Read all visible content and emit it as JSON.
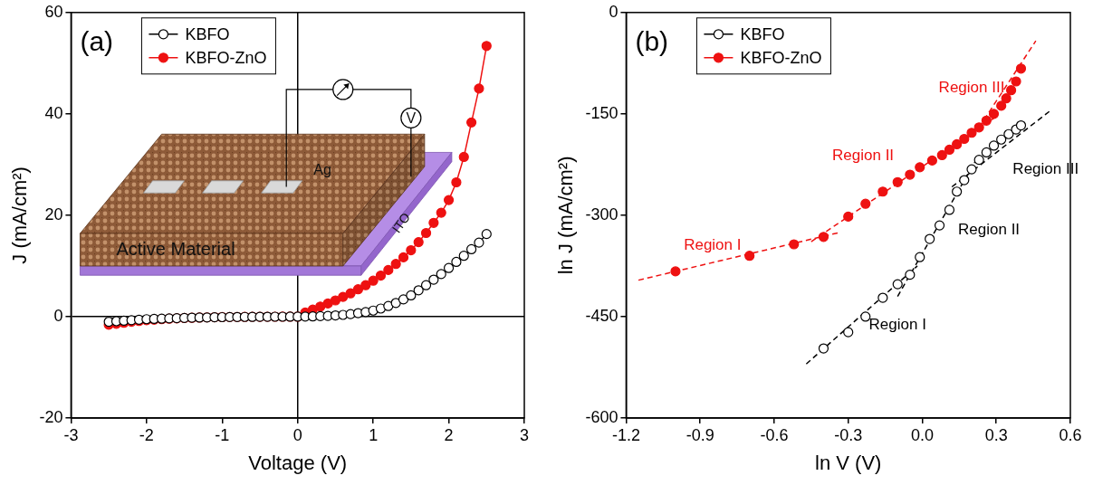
{
  "chart_data": [
    {
      "type": "line",
      "panel": "(a)",
      "x_label": "Voltage (V)",
      "y_label": "J (mA/cm²)",
      "xlim": [
        -3,
        3
      ],
      "xticks": [
        -3,
        -2,
        -1,
        0,
        1,
        2,
        3
      ],
      "ylim": [
        -20,
        60
      ],
      "yticks": [
        -20,
        0,
        20,
        40,
        60
      ],
      "grid": false,
      "legend": "upper left",
      "x": [
        -2.5,
        -2.4,
        -2.3,
        -2.2,
        -2.1,
        -2.0,
        -1.9,
        -1.8,
        -1.7,
        -1.6,
        -1.5,
        -1.4,
        -1.3,
        -1.2,
        -1.1,
        -1.0,
        -0.9,
        -0.8,
        -0.7,
        -0.6,
        -0.5,
        -0.4,
        -0.3,
        -0.2,
        -0.1,
        0,
        0.1,
        0.2,
        0.3,
        0.4,
        0.5,
        0.6,
        0.7,
        0.8,
        0.9,
        1.0,
        1.1,
        1.2,
        1.3,
        1.4,
        1.5,
        1.6,
        1.7,
        1.8,
        1.9,
        2.0,
        2.1,
        2.2,
        2.3,
        2.4,
        2.5
      ],
      "series": [
        {
          "name": "KBFO",
          "color": "#000000",
          "marker": "circle_open",
          "line_style": "solid",
          "values": [
            -1.0,
            -0.9,
            -0.8,
            -0.7,
            -0.6,
            -0.5,
            -0.45,
            -0.4,
            -0.35,
            -0.3,
            -0.25,
            -0.2,
            -0.18,
            -0.15,
            -0.12,
            -0.1,
            -0.08,
            -0.06,
            -0.05,
            -0.04,
            -0.03,
            -0.02,
            -0.01,
            -0.01,
            0,
            0,
            0.02,
            0.05,
            0.1,
            0.15,
            0.25,
            0.35,
            0.5,
            0.7,
            0.9,
            1.2,
            1.6,
            2.1,
            2.7,
            3.4,
            4.2,
            5.2,
            6.2,
            7.3,
            8.4,
            9.6,
            10.8,
            12.0,
            13.3,
            14.6,
            16.3
          ]
        },
        {
          "name": "KBFO-ZnO",
          "color": "#ee1111",
          "marker": "circle",
          "line_style": "solid",
          "values": [
            -1.6,
            -1.4,
            -1.2,
            -1.0,
            -0.85,
            -0.7,
            -0.6,
            -0.5,
            -0.4,
            -0.33,
            -0.27,
            -0.22,
            -0.18,
            -0.14,
            -0.11,
            -0.09,
            -0.07,
            -0.05,
            -0.04,
            -0.03,
            -0.02,
            -0.01,
            -0.01,
            0,
            0,
            0,
            0.8,
            1.4,
            2.0,
            2.6,
            3.2,
            3.9,
            4.6,
            5.4,
            6.2,
            7.1,
            8.1,
            9.2,
            10.4,
            11.7,
            13.1,
            14.7,
            16.5,
            18.5,
            20.5,
            23,
            26.5,
            31.5,
            38.3,
            45,
            53.4
          ]
        }
      ],
      "annotations": [
        {
          "text": "Ag"
        },
        {
          "text": "Active Material"
        },
        {
          "text": "ITO"
        },
        {
          "text": "V"
        }
      ]
    },
    {
      "type": "scatter",
      "panel": "(b)",
      "x_label": "ln V (V)",
      "y_label": "ln J (mA/cm²)",
      "xlim": [
        -1.2,
        0.6
      ],
      "xticks": [
        -1.2,
        -0.9,
        -0.6,
        -0.3,
        {
          "value": 0,
          "label": "0.0"
        },
        0.3,
        0.6
      ],
      "ylim": [
        -600,
        0
      ],
      "yticks": [
        -600,
        -450,
        -300,
        -150,
        0
      ],
      "grid": false,
      "legend": "upper left",
      "series": [
        {
          "name": "KBFO",
          "color": "#000000",
          "marker": "circle_open",
          "line_style": "none",
          "values": [
            [
              -0.4,
              -497
            ],
            [
              -0.3,
              -473
            ],
            [
              -0.23,
              -450
            ],
            [
              -0.16,
              -422
            ],
            [
              -0.1,
              -402
            ],
            [
              -0.05,
              -388
            ],
            [
              -0.01,
              -362
            ],
            [
              0.03,
              -335
            ],
            [
              0.07,
              -315
            ],
            [
              0.11,
              -292
            ],
            [
              0.14,
              -265
            ],
            [
              0.17,
              -248
            ],
            [
              0.2,
              -232
            ],
            [
              0.23,
              -218
            ],
            [
              0.26,
              -207
            ],
            [
              0.29,
              -197
            ],
            [
              0.32,
              -188
            ],
            [
              0.35,
              -180
            ],
            [
              0.38,
              -173
            ],
            [
              0.4,
              -167
            ]
          ]
        },
        {
          "name": "KBFO-ZnO",
          "color": "#ee1111",
          "marker": "circle",
          "line_style": "none",
          "values": [
            [
              -1.0,
              -383
            ],
            [
              -0.7,
              -360
            ],
            [
              -0.52,
              -343
            ],
            [
              -0.4,
              -332
            ],
            [
              -0.3,
              -302
            ],
            [
              -0.23,
              -283
            ],
            [
              -0.16,
              -265
            ],
            [
              -0.1,
              -251
            ],
            [
              -0.05,
              -240
            ],
            [
              -0.01,
              -229
            ],
            [
              0.04,
              -219
            ],
            [
              0.08,
              -211
            ],
            [
              0.11,
              -203
            ],
            [
              0.14,
              -195
            ],
            [
              0.17,
              -187
            ],
            [
              0.2,
              -178
            ],
            [
              0.23,
              -170
            ],
            [
              0.26,
              -160
            ],
            [
              0.29,
              -150
            ],
            [
              0.32,
              -138
            ],
            [
              0.34,
              -127
            ],
            [
              0.36,
              -115
            ],
            [
              0.38,
              -102
            ],
            [
              0.4,
              -83
            ]
          ]
        },
        {
          "color": "#ee1111",
          "marker": "none",
          "line_style": "dashed",
          "values": [
            [
              -1.15,
              -396
            ],
            [
              -0.33,
              -325
            ]
          ]
        },
        {
          "color": "#ee1111",
          "marker": "none",
          "line_style": "dashed",
          "values": [
            [
              -0.45,
              -339
            ],
            [
              0.3,
              -154
            ]
          ]
        },
        {
          "color": "#ee1111",
          "marker": "none",
          "line_style": "dashed",
          "values": [
            [
              0.23,
              -170
            ],
            [
              0.46,
              -42
            ]
          ]
        },
        {
          "color": "#000000",
          "marker": "none",
          "line_style": "dashed",
          "values": [
            [
              -0.47,
              -520
            ],
            [
              -0.02,
              -375
            ]
          ]
        },
        {
          "color": "#000000",
          "marker": "none",
          "line_style": "dashed",
          "values": [
            [
              -0.1,
              -420
            ],
            [
              0.22,
              -217
            ]
          ]
        },
        {
          "color": "#000000",
          "marker": "none",
          "line_style": "dashed",
          "values": [
            [
              0.12,
              -258
            ],
            [
              0.52,
              -145
            ]
          ]
        }
      ],
      "annotations": [
        {
          "text": "Region I",
          "x": -0.85,
          "y": -345,
          "color": "#ee1111"
        },
        {
          "text": "Region II",
          "x": -0.24,
          "y": -212,
          "color": "#ee1111"
        },
        {
          "text": "Region III",
          "x": 0.2,
          "y": -112,
          "color": "#ee1111"
        },
        {
          "text": "Region III",
          "x": 0.5,
          "y": -232,
          "color": "#000000"
        },
        {
          "text": "Region II",
          "x": 0.27,
          "y": -322,
          "color": "#000000"
        },
        {
          "text": "Region I",
          "x": -0.1,
          "y": -462,
          "color": "#000000"
        }
      ]
    }
  ]
}
